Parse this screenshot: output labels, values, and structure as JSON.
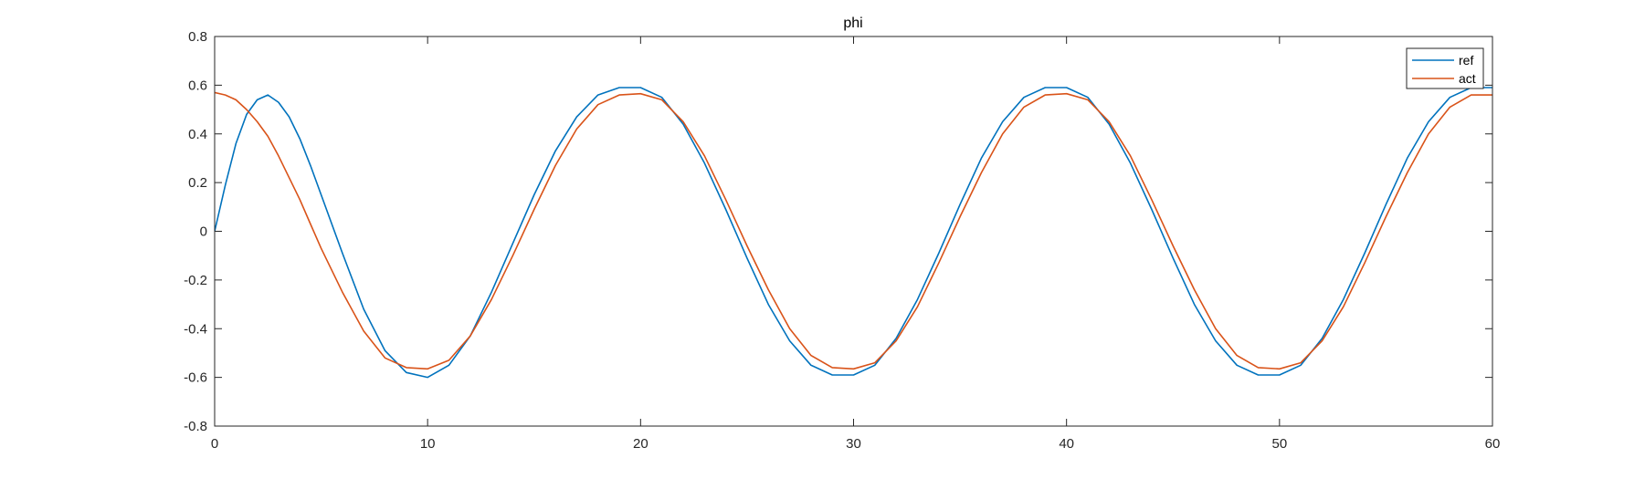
{
  "chart_data": {
    "type": "line",
    "title": "phi",
    "xlabel": "",
    "ylabel": "",
    "xlim": [
      0,
      60
    ],
    "ylim": [
      -0.8,
      0.8
    ],
    "xticks": [
      0,
      10,
      20,
      30,
      40,
      50,
      60
    ],
    "xtick_labels": [
      "0",
      "10",
      "20",
      "30",
      "40",
      "50",
      "60"
    ],
    "yticks": [
      0.8,
      0.6,
      0.4,
      0.2,
      0,
      -0.2,
      -0.4,
      -0.6,
      -0.8
    ],
    "ytick_labels": [
      "0.8",
      "0.6",
      "0.4",
      "0.2",
      "0",
      "-0.2",
      "-0.4",
      "-0.6",
      "-0.8"
    ],
    "grid": false,
    "legend_position": "top-right",
    "series": [
      {
        "name": "ref",
        "color": "#0072BD",
        "x": [
          0,
          0.5,
          1,
          1.5,
          2,
          2.5,
          3,
          3.5,
          4,
          4.5,
          5,
          6,
          7,
          8,
          9,
          10,
          11,
          12,
          13,
          14,
          15,
          16,
          17,
          18,
          19,
          20,
          21,
          22,
          23,
          24,
          25,
          26,
          27,
          28,
          29,
          30,
          31,
          32,
          33,
          34,
          35,
          36,
          37,
          38,
          39,
          40,
          41,
          42,
          43,
          44,
          45,
          46,
          47,
          48,
          49,
          50,
          51,
          52,
          53,
          54,
          55,
          56,
          57,
          58,
          59,
          60
        ],
        "y": [
          0.0,
          0.19,
          0.36,
          0.48,
          0.54,
          0.56,
          0.53,
          0.47,
          0.38,
          0.27,
          0.15,
          -0.09,
          -0.32,
          -0.49,
          -0.58,
          -0.6,
          -0.55,
          -0.43,
          -0.25,
          -0.05,
          0.15,
          0.33,
          0.47,
          0.56,
          0.59,
          0.59,
          0.55,
          0.44,
          0.28,
          0.09,
          -0.11,
          -0.3,
          -0.45,
          -0.55,
          -0.59,
          -0.59,
          -0.55,
          -0.44,
          -0.28,
          -0.09,
          0.11,
          0.3,
          0.45,
          0.55,
          0.59,
          0.59,
          0.55,
          0.44,
          0.28,
          0.09,
          -0.11,
          -0.3,
          -0.45,
          -0.55,
          -0.59,
          -0.59,
          -0.55,
          -0.44,
          -0.28,
          -0.09,
          0.11,
          0.3,
          0.45,
          0.55,
          0.59,
          0.59
        ]
      },
      {
        "name": "act",
        "color": "#D95319",
        "x": [
          0,
          0.5,
          1,
          1.5,
          2,
          2.5,
          3,
          3.5,
          4,
          4.5,
          5,
          6,
          7,
          8,
          9,
          10,
          11,
          12,
          13,
          14,
          15,
          16,
          17,
          18,
          19,
          20,
          21,
          22,
          23,
          24,
          25,
          26,
          27,
          28,
          29,
          30,
          31,
          32,
          33,
          34,
          35,
          36,
          37,
          38,
          39,
          40,
          41,
          42,
          43,
          44,
          45,
          46,
          47,
          48,
          49,
          50,
          51,
          52,
          53,
          54,
          55,
          56,
          57,
          58,
          59,
          60
        ],
        "y": [
          0.57,
          0.56,
          0.54,
          0.5,
          0.45,
          0.39,
          0.31,
          0.22,
          0.13,
          0.03,
          -0.07,
          -0.25,
          -0.41,
          -0.52,
          -0.56,
          -0.565,
          -0.53,
          -0.43,
          -0.28,
          -0.1,
          0.09,
          0.27,
          0.42,
          0.52,
          0.56,
          0.565,
          0.54,
          0.45,
          0.31,
          0.13,
          -0.06,
          -0.24,
          -0.4,
          -0.51,
          -0.56,
          -0.565,
          -0.54,
          -0.45,
          -0.31,
          -0.13,
          0.06,
          0.24,
          0.4,
          0.51,
          0.56,
          0.565,
          0.54,
          0.45,
          0.31,
          0.13,
          -0.06,
          -0.24,
          -0.4,
          -0.51,
          -0.56,
          -0.565,
          -0.54,
          -0.45,
          -0.31,
          -0.13,
          0.06,
          0.24,
          0.4,
          0.51,
          0.56,
          0.56
        ]
      }
    ]
  }
}
